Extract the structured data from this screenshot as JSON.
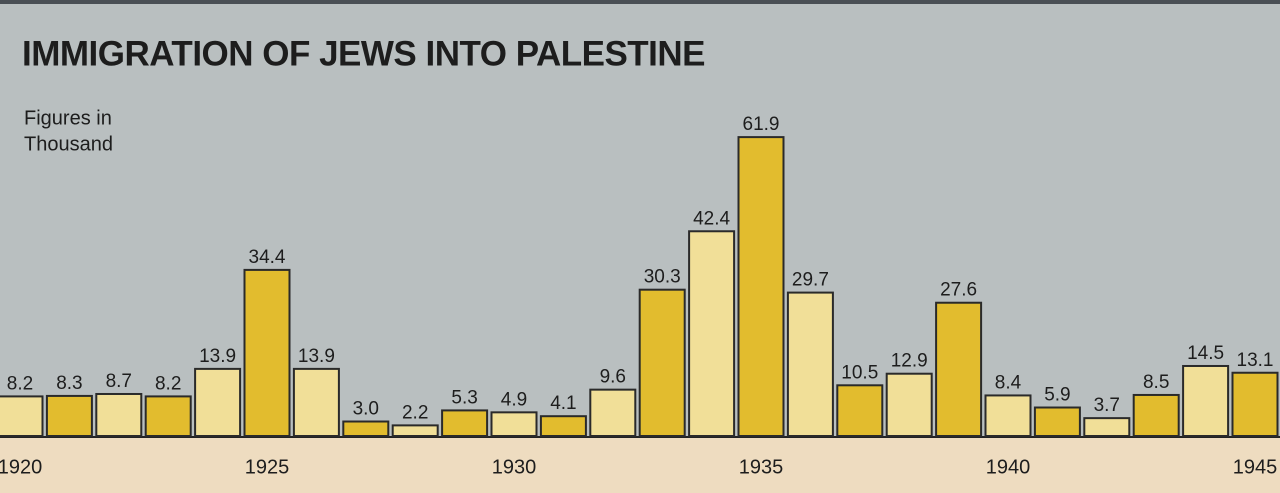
{
  "chart_data": {
    "type": "bar",
    "title": "IMMIGRATION OF JEWS INTO PALESTINE",
    "subtitle": [
      "Figures in",
      "Thousand"
    ],
    "categories": [
      "1920",
      null,
      null,
      null,
      null,
      "1925",
      null,
      null,
      null,
      null,
      "1930",
      null,
      null,
      null,
      null,
      "1935",
      null,
      null,
      null,
      null,
      "1940",
      null,
      null,
      null,
      null,
      "1945"
    ],
    "values": [
      8.2,
      8.3,
      8.7,
      8.2,
      13.9,
      34.4,
      13.9,
      3.0,
      2.2,
      5.3,
      4.9,
      4.1,
      9.6,
      30.3,
      42.4,
      61.9,
      29.7,
      10.5,
      12.9,
      27.6,
      8.4,
      5.9,
      3.7,
      8.5,
      14.5,
      13.1
    ],
    "value_labels": [
      "8.2",
      "8.3",
      "8.7",
      "8.2",
      "13.9",
      "34.4",
      "13.9",
      "3.0",
      "2.2",
      "5.3",
      "4.9",
      "4.1",
      "9.6",
      "30.3",
      "42.4",
      "61.9",
      "29.7",
      "10.5",
      "12.9",
      "27.6",
      "8.4",
      "5.9",
      "3.7",
      "8.5",
      "14.5",
      "13.1"
    ],
    "colors": [
      "#f1df98",
      "#e2bc2e",
      "#f1df98",
      "#e2bc2e",
      "#f1df98",
      "#e2bc2e",
      "#f1df98",
      "#e2bc2e",
      "#f1df98",
      "#e2bc2e",
      "#f1df98",
      "#e2bc2e",
      "#f1df98",
      "#e2bc2e",
      "#f1df98",
      "#e2bc2e",
      "#f1df98",
      "#e2bc2e",
      "#f1df98",
      "#e2bc2e",
      "#f1df98",
      "#e2bc2e",
      "#f1df98",
      "#e2bc2e",
      "#f1df98",
      "#e2bc2e"
    ],
    "ylim": [
      0,
      70
    ]
  }
}
